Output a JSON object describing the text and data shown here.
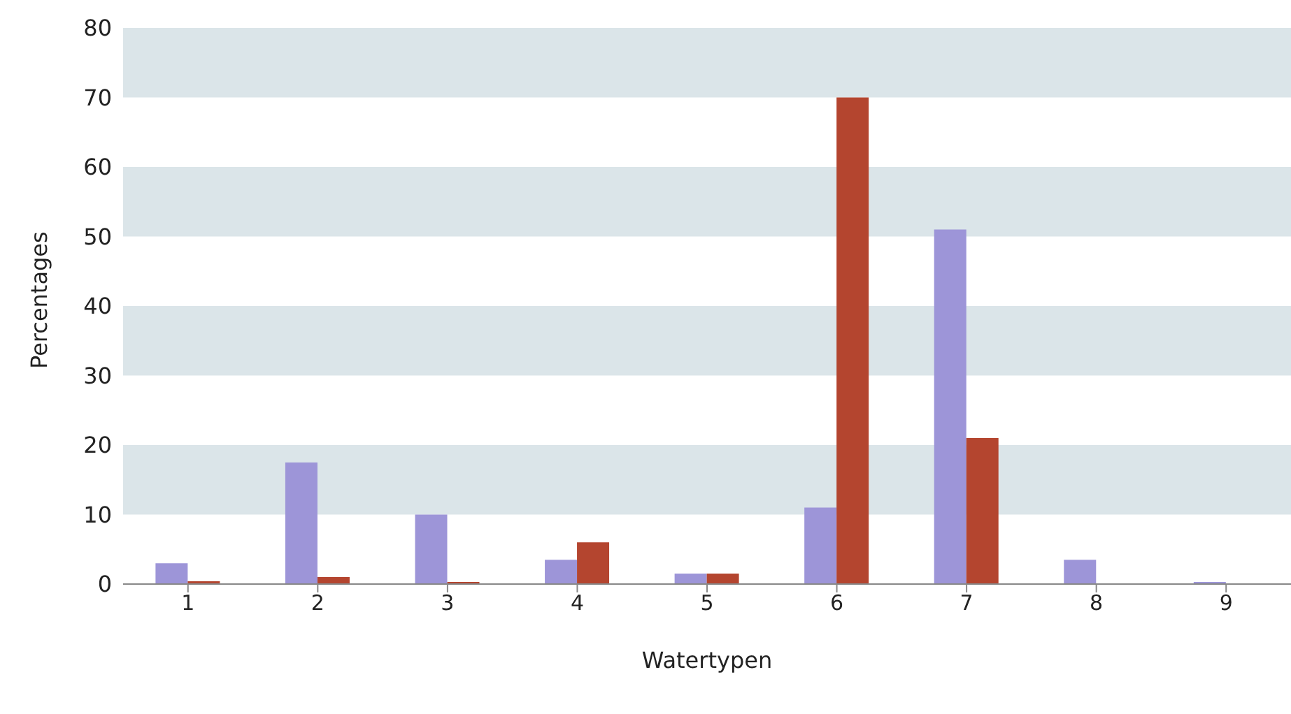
{
  "chart_data": {
    "type": "bar",
    "xlabel": "Watertypen",
    "ylabel": "Percentages",
    "categories": [
      "1",
      "2",
      "3",
      "4",
      "5",
      "6",
      "7",
      "8",
      "9"
    ],
    "series": [
      {
        "color": "#9d95d8",
        "values": [
          3,
          17.5,
          10,
          3.5,
          1.5,
          11,
          51,
          3.5,
          0.3
        ]
      },
      {
        "color": "#b4452f",
        "values": [
          0.4,
          1,
          0.3,
          6,
          1.5,
          70,
          21,
          0,
          0
        ]
      }
    ],
    "ylim": [
      0,
      80
    ],
    "yticks": [
      0,
      10,
      20,
      30,
      40,
      50,
      60,
      70,
      80
    ],
    "bands": [
      {
        "axis": "y",
        "from": 10,
        "to": 20,
        "color": "#dbe5e9"
      },
      {
        "axis": "y",
        "from": 30,
        "to": 40,
        "color": "#dbe5e9"
      },
      {
        "axis": "y",
        "from": 50,
        "to": 60,
        "color": "#dbe5e9"
      },
      {
        "axis": "y",
        "from": 70,
        "to": 80,
        "color": "#dbe5e9"
      }
    ],
    "grid": false,
    "legend": false
  }
}
